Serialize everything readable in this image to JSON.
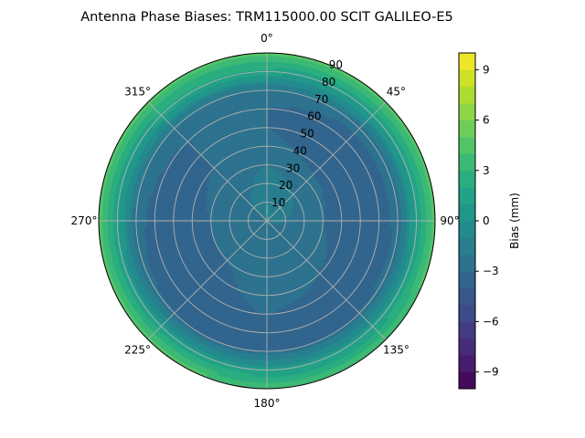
{
  "chart_data": {
    "type": "heatmap",
    "projection": "polar",
    "title": "Antenna Phase Biases: TRM115000.00    SCIT GALILEO-E5",
    "angular_axis": {
      "zero_location": "top",
      "direction": "clockwise",
      "tick_values": [
        0,
        45,
        90,
        135,
        180,
        225,
        270,
        315
      ],
      "tick_labels": [
        "0°",
        "45°",
        "90°",
        "135°",
        "180°",
        "225°",
        "270°",
        "315°"
      ]
    },
    "radial_axis": {
      "range": [
        0,
        90
      ],
      "tick_values": [
        10,
        20,
        30,
        40,
        50,
        60,
        70,
        80,
        90
      ],
      "tick_labels": [
        "10",
        "20",
        "30",
        "40",
        "50",
        "60",
        "70",
        "80",
        "90"
      ],
      "label_azimuth": 22.5
    },
    "grid": true,
    "colorbar": {
      "label": "Bias (mm)",
      "colormap": "viridis",
      "range": [
        -10,
        10
      ],
      "levels": 20,
      "tick_values": [
        -9,
        -6,
        -3,
        0,
        3,
        6,
        9
      ],
      "tick_labels": [
        "−9",
        "−6",
        "−3",
        "0",
        "3",
        "6",
        "9"
      ],
      "placement": "right"
    },
    "bias_field": {
      "x_label": "radius",
      "y_label": "azimuth",
      "radii": [
        0,
        10,
        20,
        30,
        40,
        50,
        60,
        70,
        80,
        90
      ],
      "azimuths": [
        0,
        45,
        90,
        135,
        180,
        225,
        270,
        315
      ],
      "values_mm": [
        [
          -0.5,
          -1.0,
          -1.5,
          -2.0,
          -2.5,
          -2.5,
          -2.5,
          -2.0
        ],
        [
          -1.0,
          -1.5,
          -2.0,
          -2.5,
          -2.5,
          -2.5,
          -2.5,
          -2.0
        ],
        [
          -1.5,
          -2.0,
          -2.5,
          -2.5,
          -2.5,
          -3.0,
          -3.0,
          -2.5
        ],
        [
          -2.0,
          -2.5,
          -3.0,
          -2.5,
          -2.5,
          -3.0,
          -3.0,
          -2.5
        ],
        [
          -2.5,
          -3.5,
          -3.5,
          -3.0,
          -2.5,
          -3.5,
          -3.5,
          -3.0
        ],
        [
          -3.0,
          -4.0,
          -4.0,
          -3.5,
          -3.0,
          -3.5,
          -3.5,
          -3.0
        ],
        [
          -3.0,
          -4.0,
          -4.0,
          -3.5,
          -3.5,
          -4.0,
          -3.5,
          -3.0
        ],
        [
          -2.0,
          -2.5,
          -2.5,
          -3.0,
          -3.0,
          -3.0,
          -2.5,
          -2.0
        ],
        [
          1.5,
          1.0,
          1.0,
          1.0,
          1.0,
          1.0,
          1.0,
          1.5
        ],
        [
          4.5,
          4.5,
          4.5,
          4.0,
          4.0,
          4.5,
          4.5,
          4.5
        ]
      ]
    }
  }
}
